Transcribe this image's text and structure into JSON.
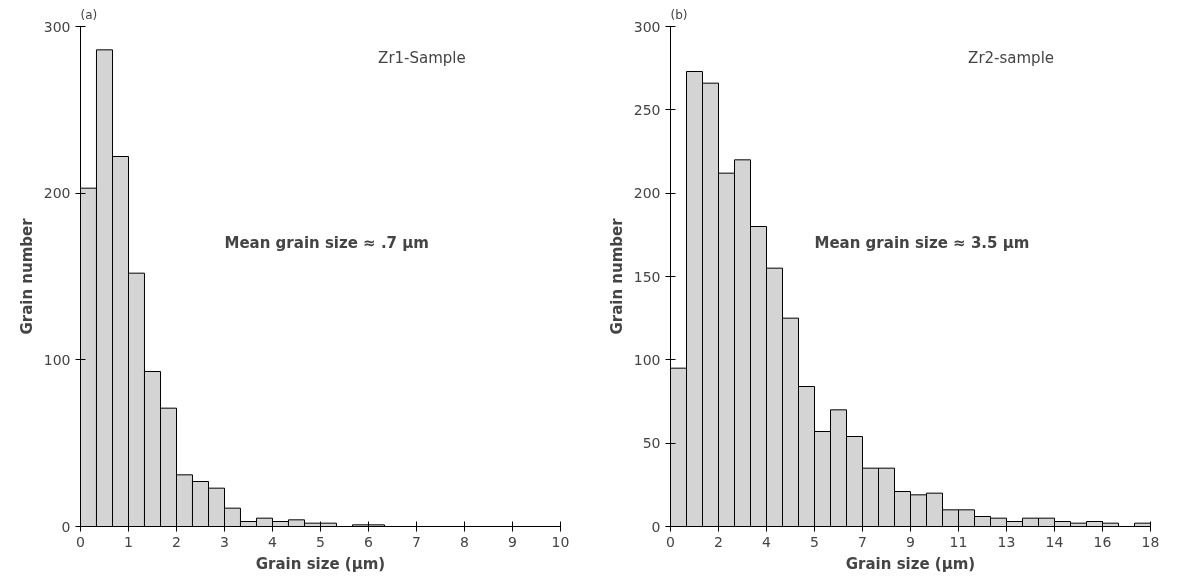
{
  "chart_data": [
    {
      "type": "histogram",
      "title": "(a)",
      "xlabel": "Grain size (μm)",
      "ylabel": "Grain number",
      "color": "#d4d4d4",
      "bins": [
        0,
        0.333,
        0.667,
        1,
        1.333,
        1.667,
        2,
        2.333,
        2.667,
        3,
        3.333,
        3.667,
        4,
        4.333,
        4.667,
        5,
        5.333,
        5.667,
        6,
        6.333,
        6.667,
        7,
        7.333,
        7.667,
        8,
        8.333,
        8.667,
        9,
        9.333,
        9.667,
        10
      ],
      "values": [
        203,
        286,
        222,
        152,
        93,
        71,
        31,
        27,
        23,
        11,
        3,
        5,
        3,
        4,
        2,
        2,
        0,
        1,
        1,
        0,
        0,
        0,
        0,
        0,
        0,
        0,
        0,
        0,
        0,
        0
      ],
      "xlim": [
        0,
        10
      ],
      "ylim": [
        0,
        300
      ],
      "xticks": [
        0,
        1,
        2,
        3,
        4,
        5,
        6,
        7,
        8,
        9,
        10
      ],
      "yticks": [
        0,
        100,
        200,
        300
      ],
      "grid": false,
      "annotations": [
        "Zr1-Sample",
        "Mean grain size ≈ .7 μm"
      ]
    },
    {
      "type": "histogram",
      "title": "(b)",
      "xlabel": "Grain size (μm)",
      "ylabel": "Grain number",
      "color": "#d4d4d4",
      "bins": [
        0,
        0.6,
        1.2,
        1.8,
        2.4,
        3,
        3.6,
        4.2,
        4.8,
        5.4,
        6,
        6.6,
        7.2,
        7.8,
        8.4,
        9,
        9.6,
        10.2,
        10.8,
        11.4,
        12,
        12.6,
        13.2,
        13.8,
        14.4,
        15,
        15.6,
        16.2,
        16.8,
        17.4,
        18
      ],
      "values": [
        95,
        273,
        266,
        212,
        220,
        180,
        155,
        125,
        84,
        57,
        70,
        54,
        35,
        35,
        21,
        19,
        20,
        10,
        10,
        6,
        5,
        3,
        5,
        5,
        3,
        2,
        3,
        2,
        0,
        2
      ],
      "xlim": [
        0,
        18
      ],
      "ylim": [
        0,
        300
      ],
      "xticks": [
        0,
        {
          "value": 1.8,
          "label": "2"
        },
        {
          "value": 3.6,
          "label": "4"
        },
        {
          "value": 5.4,
          "label": "5"
        },
        {
          "value": 7.2,
          "label": "7"
        },
        9,
        {
          "value": 10.8,
          "label": "11"
        },
        {
          "value": 12.6,
          "label": "13"
        },
        {
          "value": 14.4,
          "label": "14"
        },
        {
          "value": 16.2,
          "label": "16"
        },
        18
      ],
      "yticks": [
        0,
        50,
        100,
        150,
        200,
        250,
        300
      ],
      "grid": false,
      "annotations": [
        "Zr2-sample",
        "Mean grain size ≈ 3.5 μm"
      ]
    }
  ]
}
